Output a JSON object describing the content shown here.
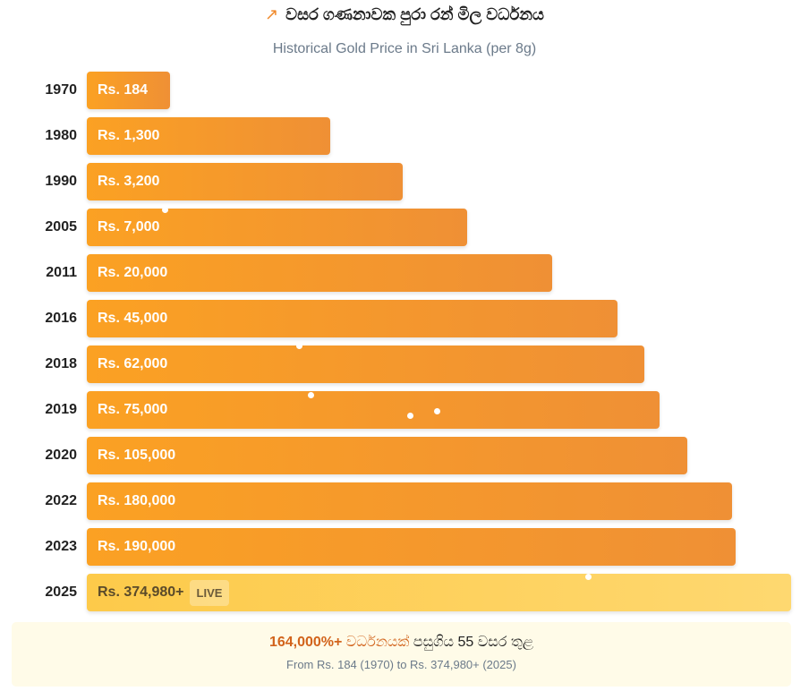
{
  "header": {
    "icon": "trending-up-icon",
    "title": "වසර ගණනාවක පුරා රන් මිල වර්ධනය",
    "subtitle": "Historical Gold Price in Sri Lanka (per 8g)"
  },
  "chart_data": {
    "type": "bar",
    "orientation": "horizontal",
    "title": "Historical Gold Price in Sri Lanka (per 8g)",
    "categories": [
      "1970",
      "1980",
      "1990",
      "2005",
      "2011",
      "2016",
      "2018",
      "2019",
      "2020",
      "2022",
      "2023",
      "2025"
    ],
    "values": [
      184,
      1300,
      3200,
      7000,
      20000,
      45000,
      62000,
      75000,
      105000,
      180000,
      190000,
      374980
    ],
    "labels": [
      "Rs. 184",
      "Rs. 1,300",
      "Rs. 3,200",
      "Rs. 7,000",
      "Rs. 20,000",
      "Rs. 45,000",
      "Rs. 62,000",
      "Rs. 75,000",
      "Rs. 105,000",
      "Rs. 180,000",
      "Rs. 190,000",
      "Rs. 374,980+"
    ],
    "bar_fill_fraction": [
      0.118,
      0.346,
      0.449,
      0.54,
      0.661,
      0.753,
      0.792,
      0.813,
      0.853,
      0.916,
      0.921,
      1.0
    ],
    "live_badge": "LIVE",
    "live_index": 11
  },
  "summary": {
    "highlight": "164,000%+",
    "growth_word": "වර්ධනයක්",
    "rest": "පසුගිය 55 වසර තුළ",
    "detail": "From Rs. 184 (1970) to Rs. 374,980+ (2025)"
  }
}
